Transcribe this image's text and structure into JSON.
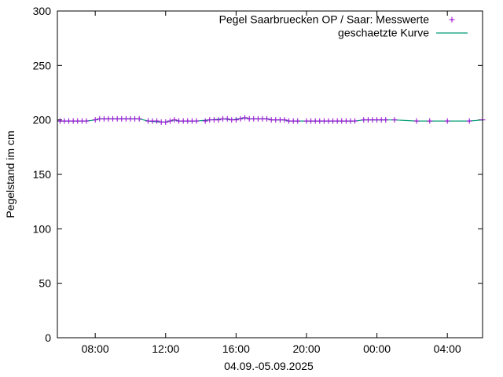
{
  "chart_data": {
    "type": "line",
    "title": "",
    "xlabel": "04.09.-05.09.2025",
    "ylabel": "Pegelstand im cm",
    "ylim": [
      0,
      300
    ],
    "yticks": [
      0,
      50,
      100,
      150,
      200,
      250,
      300
    ],
    "xlim_hours": [
      5.85,
      30.0
    ],
    "xticks": [
      {
        "h": 8,
        "label": "08:00"
      },
      {
        "h": 12,
        "label": "12:00"
      },
      {
        "h": 16,
        "label": "16:00"
      },
      {
        "h": 20,
        "label": "20:00"
      },
      {
        "h": 24,
        "label": "00:00"
      },
      {
        "h": 28,
        "label": "04:00"
      }
    ],
    "grid": false,
    "legend_position": "top-right",
    "series": [
      {
        "name": "Pegel Saarbruecken OP / Saar: Messwerte",
        "kind": "scatter",
        "marker": "+",
        "color": "#9400d3",
        "points": [
          [
            6.0,
            199
          ],
          [
            6.25,
            199
          ],
          [
            6.5,
            199
          ],
          [
            6.75,
            199
          ],
          [
            7.0,
            199
          ],
          [
            7.25,
            199
          ],
          [
            7.5,
            199
          ],
          [
            8.0,
            200
          ],
          [
            8.25,
            201
          ],
          [
            8.5,
            201
          ],
          [
            8.75,
            201
          ],
          [
            9.0,
            201
          ],
          [
            9.25,
            201
          ],
          [
            9.5,
            201
          ],
          [
            9.75,
            201
          ],
          [
            10.0,
            201
          ],
          [
            10.25,
            201
          ],
          [
            10.5,
            201
          ],
          [
            11.0,
            199
          ],
          [
            11.25,
            199
          ],
          [
            11.5,
            199
          ],
          [
            11.75,
            198
          ],
          [
            12.0,
            198
          ],
          [
            12.25,
            199
          ],
          [
            12.5,
            200
          ],
          [
            12.75,
            199
          ],
          [
            13.0,
            199
          ],
          [
            13.25,
            199
          ],
          [
            13.5,
            199
          ],
          [
            13.75,
            199
          ],
          [
            14.25,
            199
          ],
          [
            14.5,
            200
          ],
          [
            14.75,
            200
          ],
          [
            15.0,
            200
          ],
          [
            15.25,
            201
          ],
          [
            15.5,
            201
          ],
          [
            15.75,
            200
          ],
          [
            16.0,
            200
          ],
          [
            16.25,
            201
          ],
          [
            16.5,
            202
          ],
          [
            16.75,
            201
          ],
          [
            17.0,
            201
          ],
          [
            17.25,
            201
          ],
          [
            17.5,
            201
          ],
          [
            17.75,
            201
          ],
          [
            18.0,
            200
          ],
          [
            18.25,
            200
          ],
          [
            18.5,
            200
          ],
          [
            18.75,
            200
          ],
          [
            19.0,
            199
          ],
          [
            19.25,
            199
          ],
          [
            19.5,
            199
          ],
          [
            20.0,
            199
          ],
          [
            20.25,
            199
          ],
          [
            20.5,
            199
          ],
          [
            20.75,
            199
          ],
          [
            21.0,
            199
          ],
          [
            21.25,
            199
          ],
          [
            21.5,
            199
          ],
          [
            21.75,
            199
          ],
          [
            22.0,
            199
          ],
          [
            22.25,
            199
          ],
          [
            22.5,
            199
          ],
          [
            22.75,
            199
          ],
          [
            23.25,
            200
          ],
          [
            23.5,
            200
          ],
          [
            23.75,
            200
          ],
          [
            24.0,
            200
          ],
          [
            24.25,
            200
          ],
          [
            24.5,
            200
          ],
          [
            25.0,
            200
          ],
          [
            26.25,
            199
          ],
          [
            27.0,
            199
          ],
          [
            28.0,
            199
          ],
          [
            29.25,
            199
          ],
          [
            30.0,
            200
          ]
        ]
      },
      {
        "name": "geschaetzte Kurve",
        "kind": "line",
        "color": "#009e73",
        "points": [
          [
            5.85,
            199
          ],
          [
            7.5,
            199
          ],
          [
            8.0,
            200
          ],
          [
            8.25,
            201
          ],
          [
            10.5,
            201
          ],
          [
            11.0,
            199
          ],
          [
            11.75,
            198
          ],
          [
            12.0,
            198
          ],
          [
            12.5,
            200
          ],
          [
            12.75,
            199
          ],
          [
            13.75,
            199
          ],
          [
            14.5,
            200
          ],
          [
            15.25,
            201
          ],
          [
            15.75,
            200
          ],
          [
            16.5,
            202
          ],
          [
            16.75,
            201
          ],
          [
            17.75,
            201
          ],
          [
            18.0,
            200
          ],
          [
            18.75,
            200
          ],
          [
            19.0,
            199
          ],
          [
            22.75,
            199
          ],
          [
            23.25,
            200
          ],
          [
            25.0,
            200
          ],
          [
            26.25,
            199
          ],
          [
            29.25,
            199
          ],
          [
            30.0,
            200
          ]
        ]
      }
    ]
  }
}
